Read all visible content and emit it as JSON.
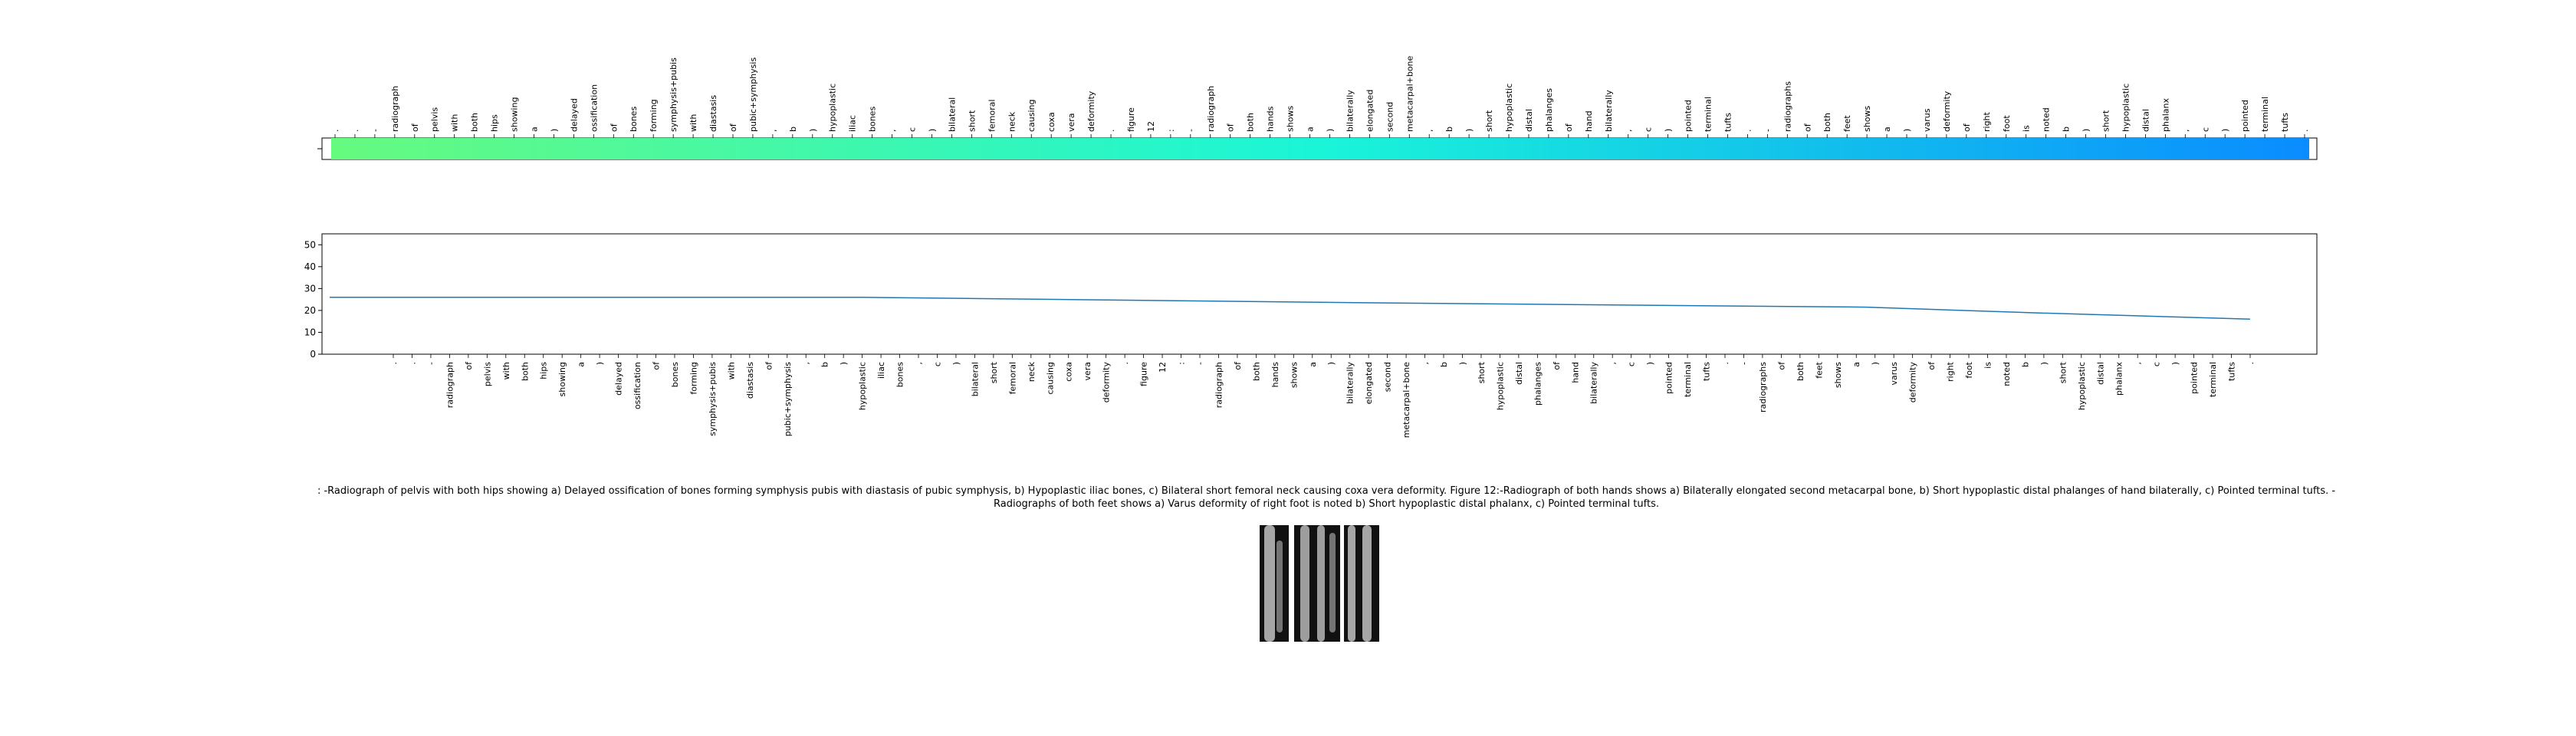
{
  "tokens": [
    ".",
    ".",
    "-",
    "radiograph",
    "of",
    "pelvis",
    "with",
    "both",
    "hips",
    "showing",
    "a",
    ")",
    "delayed",
    "ossification",
    "of",
    "bones",
    "forming",
    "symphysis+pubis",
    "with",
    "diastasis",
    "of",
    "pubic+symphysis",
    ",",
    "b",
    ")",
    "hypoplastic",
    "iliac",
    "bones",
    ",",
    "c",
    ")",
    "bilateral",
    "short",
    "femoral",
    "neck",
    "causing",
    "coxa",
    "vera",
    "deformity",
    ".",
    "figure",
    "12",
    ":",
    "-",
    "radiograph",
    "of",
    "both",
    "hands",
    "shows",
    "a",
    ")",
    "bilaterally",
    "elongated",
    "second",
    "metacarpal+bone",
    ",",
    "b",
    ")",
    "short",
    "hypoplastic",
    "distal",
    "phalanges",
    "of",
    "hand",
    "bilaterally",
    ",",
    "c",
    ")",
    "pointed",
    "terminal",
    "tufts",
    ".",
    "-",
    "radiographs",
    "of",
    "both",
    "feet",
    "shows",
    "a",
    ")",
    "varus",
    "deformity",
    "of",
    "right",
    "foot",
    "is",
    "noted",
    "b",
    ")",
    "short",
    "hypoplastic",
    "distal",
    "phalanx",
    ",",
    "c",
    ")",
    "pointed",
    "terminal",
    "tufts",
    "."
  ],
  "colors": {
    "bar_start": "#66fa7f",
    "bar_mid": "#1af5d8",
    "bar_end": "#0a8cff",
    "line": "#1f77b4"
  },
  "chart_data": [
    {
      "type": "heatmap",
      "categories_ref": "tokens",
      "colormap": "green-to-blue",
      "values_note": ""
    },
    {
      "type": "line",
      "categories_ref": "tokens",
      "ylim": [
        0,
        55
      ],
      "yticks": [
        "0",
        "10",
        "20",
        "30",
        "40",
        "50"
      ],
      "series": [
        {
          "points": [
            [
              0,
              26
            ],
            [
              36,
              26
            ],
            [
              70,
              23.5
            ],
            [
              104,
              21.5
            ],
            [
              115,
              19
            ],
            [
              130,
              16
            ]
          ],
          "x_extent": 134
        }
      ],
      "grid": false
    }
  ],
  "caption": ": -Radiograph of pelvis with both hips showing a) Delayed ossification of bones forming symphysis pubis with diastasis of pubic symphysis, b) Hypoplastic iliac bones, c) Bilateral short femoral neck causing coxa vera deformity. Figure 12:-Radiograph of both hands shows a) Bilaterally elongated second metacarpal bone, b) Short hypoplastic distal phalanges of hand bilaterally, c) Pointed terminal tufts. - Radiographs of both feet shows a) Varus deformity of right foot is noted b) Short hypoplastic distal phalanx, c) Pointed terminal tufts."
}
